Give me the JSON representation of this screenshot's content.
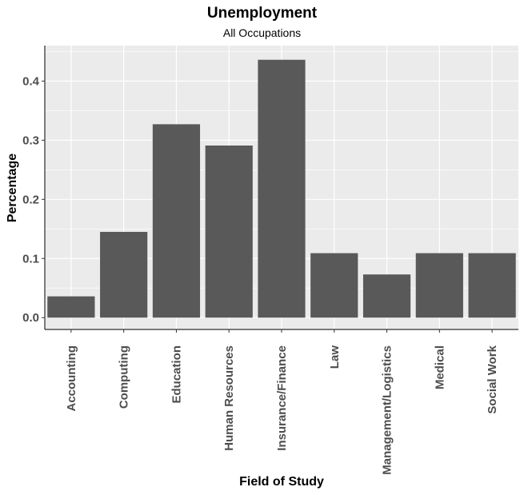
{
  "chart_data": {
    "type": "bar",
    "title": "Unemployment",
    "subtitle": "All Occupations",
    "xlabel": "Field of Study",
    "ylabel": "Percentage",
    "categories": [
      "Accounting",
      "Computing",
      "Education",
      "Human Resources",
      "Insurance/Finance",
      "Law",
      "Management/Logistics",
      "Medical",
      "Social Work"
    ],
    "values": [
      0.036,
      0.145,
      0.327,
      0.291,
      0.436,
      0.109,
      0.073,
      0.109,
      0.109
    ],
    "y_ticks": [
      "0.0",
      "0.1",
      "0.2",
      "0.3",
      "0.4"
    ],
    "ylim": [
      -0.02,
      0.46
    ],
    "grid": true,
    "colors": {
      "bar": "#595959",
      "panel": "#ebebeb",
      "grid": "#ffffff",
      "text": "#4d4d4d"
    }
  }
}
